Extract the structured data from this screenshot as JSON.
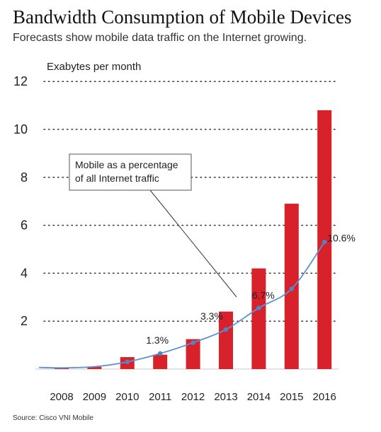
{
  "header": {
    "title": "Bandwidth Consumption of Mobile Devices",
    "subtitle": "Forecasts show mobile data traffic on the Internet growing."
  },
  "footer": {
    "source": "Source: Cisco VNI Mobile"
  },
  "colors": {
    "bar": "#d7222b",
    "line": "#5b93cf",
    "point": "#4a86c8",
    "grid_dots": "#333333",
    "text": "#222222"
  },
  "chart_data": {
    "type": "bar",
    "ylabel": "Exabytes per month",
    "ylim": [
      0,
      12
    ],
    "y_ticks": [
      2,
      4,
      6,
      8,
      10,
      12
    ],
    "grid": "dotted horizontal",
    "categories": [
      "2008",
      "2009",
      "2010",
      "2011",
      "2012",
      "2013",
      "2014",
      "2015",
      "2016"
    ],
    "series": [
      {
        "kind": "bar",
        "values": [
          0.03,
          0.09,
          0.5,
          0.6,
          1.25,
          2.4,
          4.2,
          6.9,
          10.8
        ]
      },
      {
        "kind": "line",
        "name": "Mobile as a percentage of all Internet traffic",
        "unit": "%",
        "values": [
          0.1,
          0.2,
          0.6,
          1.3,
          2.2,
          3.3,
          5.1,
          6.7,
          10.6
        ],
        "labels": [
          {
            "category": "2011",
            "text": "1.3%"
          },
          {
            "category": "2013",
            "text": "3.3%"
          },
          {
            "category": "2015",
            "text": "6.7%"
          },
          {
            "category": "2016",
            "text": "10.6%"
          }
        ]
      }
    ],
    "annotations": [
      {
        "line1": "Mobile as a percentage",
        "line2": "of all Internet traffic"
      }
    ]
  }
}
